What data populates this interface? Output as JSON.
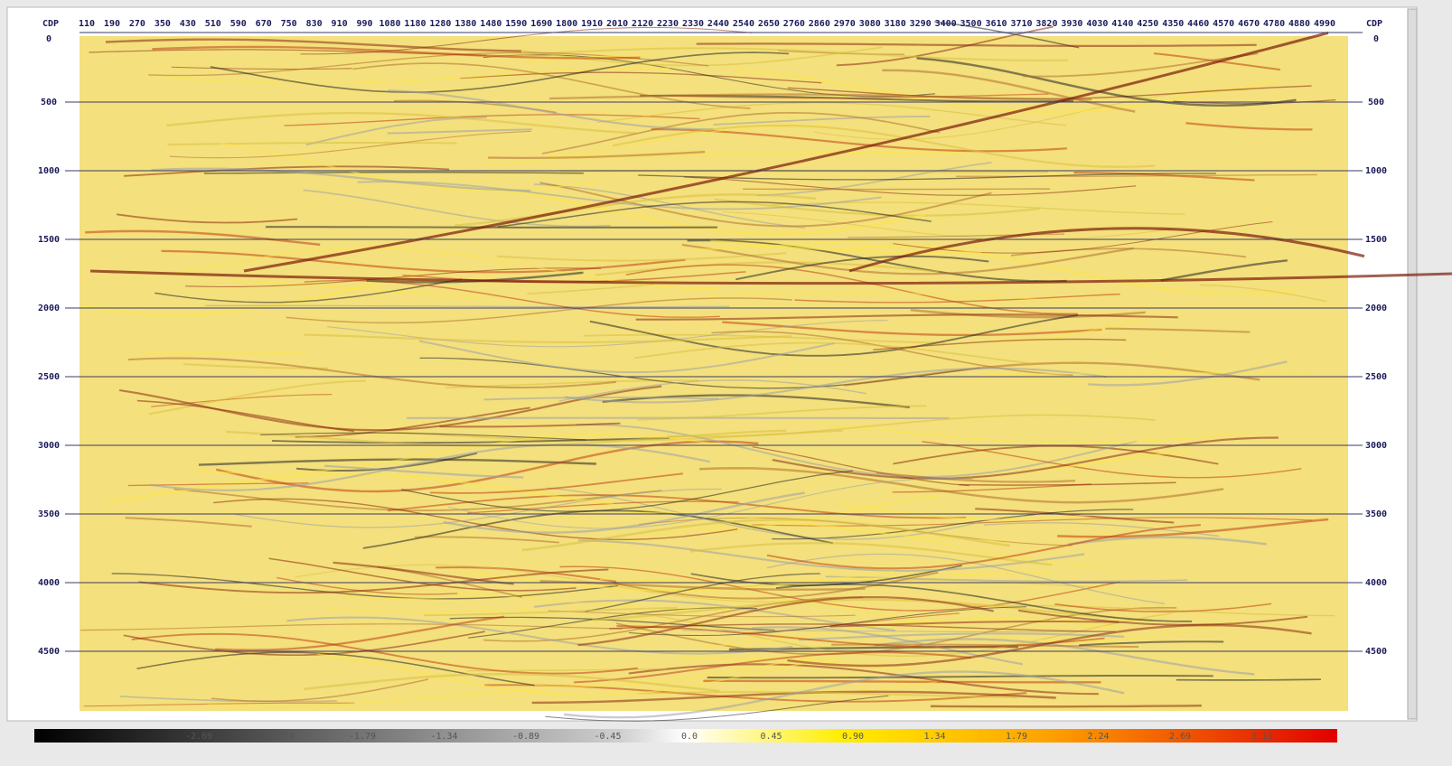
{
  "section": {
    "cdp_label": "CDP",
    "cdp_labels": [
      110,
      190,
      270,
      350,
      430,
      510,
      590,
      670,
      750,
      830,
      910,
      990,
      1080,
      1180,
      1280,
      1380,
      1480,
      1590,
      1690,
      1800,
      1910,
      2010,
      2120,
      2230,
      2330,
      2440,
      2540,
      2650,
      2760,
      2860,
      2970,
      3080,
      3180,
      3290,
      3400,
      3500,
      3610,
      3710,
      3820,
      3930,
      4030,
      4140,
      4250,
      4350,
      4460,
      4570,
      4670,
      4780,
      4880,
      4990
    ],
    "time_labels": [
      0,
      500,
      1000,
      1500,
      2000,
      2500,
      3000,
      3500,
      4000,
      4500
    ]
  },
  "colorbar": {
    "labels": [
      "-2.69",
      "-2.24",
      "-1.79",
      "-1.34",
      "-0.89",
      "-0.45",
      "0.0",
      "0.45",
      "0.90",
      "1.34",
      "1.79",
      "2.24",
      "2.69",
      "3.13"
    ]
  }
}
